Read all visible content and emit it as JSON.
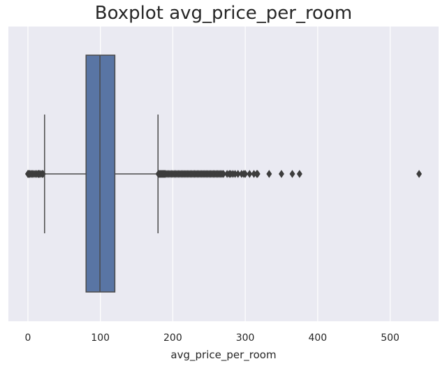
{
  "chart_data": {
    "type": "boxplot",
    "title": "Boxplot avg_price_per_room",
    "xlabel": "avg_price_per_room",
    "ylabel": "",
    "xlim": [
      -26.95,
      566.95
    ],
    "xticks": [
      0,
      100,
      200,
      300,
      400,
      500
    ],
    "grid": true,
    "background": "#EAEAF2",
    "box_color": "#5975A4",
    "line_color": "#4A4A4A",
    "stats": {
      "whisker_low": 23,
      "q1": 80.3,
      "median": 99.45,
      "q3": 120,
      "whisker_high": 179.6
    },
    "outliers_low": [
      0,
      0,
      1,
      2,
      3,
      5,
      6,
      8,
      10,
      12,
      14,
      15,
      16,
      18,
      20,
      21
    ],
    "outliers_high": [
      180,
      181,
      182,
      183,
      184,
      185,
      186,
      187,
      188,
      189,
      190,
      192,
      194,
      196,
      198,
      200,
      202,
      204,
      206,
      208,
      210,
      212,
      214,
      216,
      218,
      220,
      222,
      224,
      226,
      228,
      230,
      232,
      234,
      236,
      238,
      240,
      242,
      244,
      246,
      248,
      250,
      252,
      254,
      256,
      258,
      260,
      262,
      264,
      266,
      268,
      270,
      275,
      278,
      280,
      283,
      286,
      290,
      295,
      298,
      300,
      306,
      312,
      316,
      317,
      333,
      350,
      365,
      375,
      540
    ]
  }
}
